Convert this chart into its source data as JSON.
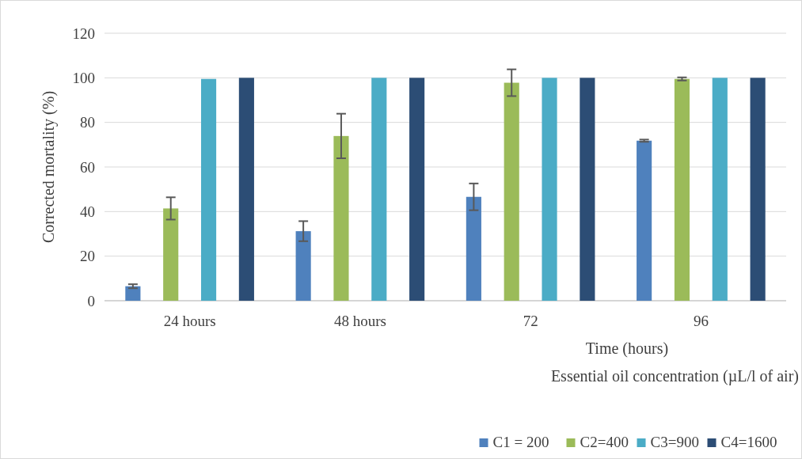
{
  "chart_data": {
    "type": "bar",
    "categories": [
      "24 hours",
      "48 hours",
      "72",
      "96"
    ],
    "xlabel": "Time (hours)",
    "ylabel": "Corrected mortality (%)",
    "legend_title": "Essential oil concentration (µL/l of air)",
    "series": [
      {
        "name": "C1 = 200",
        "color": "#4f81bd",
        "values": [
          6.5,
          31.2,
          46.6,
          71.8
        ],
        "errors": [
          0.9,
          4.5,
          6,
          0.5
        ]
      },
      {
        "name": "C2=400",
        "color": "#9bbb59",
        "values": [
          41.4,
          73.9,
          97.8,
          99.5
        ],
        "errors": [
          5,
          10,
          6,
          0.7
        ]
      },
      {
        "name": "C3=900",
        "color": "#4bacc6",
        "values": [
          99.5,
          100,
          100,
          100
        ]
      },
      {
        "name": "C4=1600",
        "color": "#2c4d75",
        "values": [
          100,
          100,
          100,
          100
        ]
      }
    ],
    "ylim": [
      0,
      120
    ],
    "yticks": [
      0,
      20,
      40,
      60,
      80,
      100,
      120
    ],
    "grid": "y",
    "legend": "bottom right"
  }
}
